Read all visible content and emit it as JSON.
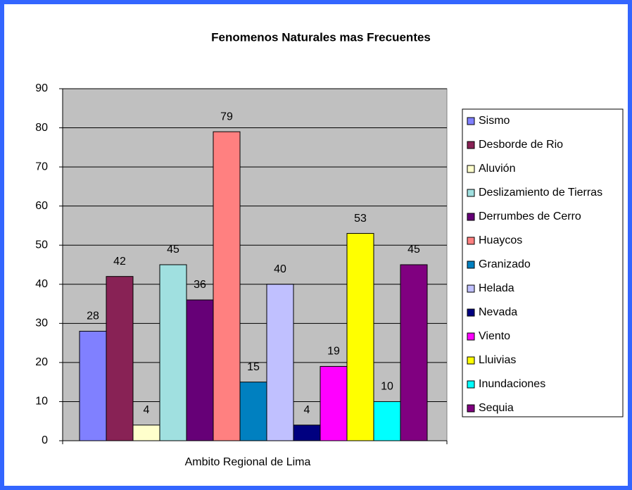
{
  "chart_data": {
    "type": "bar",
    "title": "Fenomenos Naturales mas Frecuentes",
    "categories": [
      "Ambito Regional de Lima"
    ],
    "series": [
      {
        "name": "Sismo",
        "color": "#8080ff",
        "values": [
          28
        ]
      },
      {
        "name": "Desborde de Rio",
        "color": "#882255",
        "values": [
          42
        ]
      },
      {
        "name": "Aluvión",
        "color": "#ffffcc",
        "values": [
          4
        ]
      },
      {
        "name": "Deslizamiento de Tierras",
        "color": "#a0e0e0",
        "values": [
          45
        ]
      },
      {
        "name": "Derrumbes de Cerro",
        "color": "#660077",
        "values": [
          36
        ]
      },
      {
        "name": "Huaycos",
        "color": "#ff8080",
        "values": [
          79
        ]
      },
      {
        "name": "Granizado",
        "color": "#0080c0",
        "values": [
          15
        ]
      },
      {
        "name": "Helada",
        "color": "#c0c0ff",
        "values": [
          40
        ]
      },
      {
        "name": "Nevada",
        "color": "#000080",
        "values": [
          4
        ]
      },
      {
        "name": "Viento",
        "color": "#ff00ff",
        "values": [
          19
        ]
      },
      {
        "name": "Lluivias",
        "color": "#ffff00",
        "values": [
          53
        ]
      },
      {
        "name": "Inundaciones",
        "color": "#00ffff",
        "values": [
          10
        ]
      },
      {
        "name": "Sequia",
        "color": "#800080",
        "values": [
          45
        ]
      }
    ],
    "ylim": [
      0,
      90
    ],
    "yticks": [
      0,
      10,
      20,
      30,
      40,
      50,
      60,
      70,
      80,
      90
    ],
    "grid": true,
    "legend": "right"
  }
}
